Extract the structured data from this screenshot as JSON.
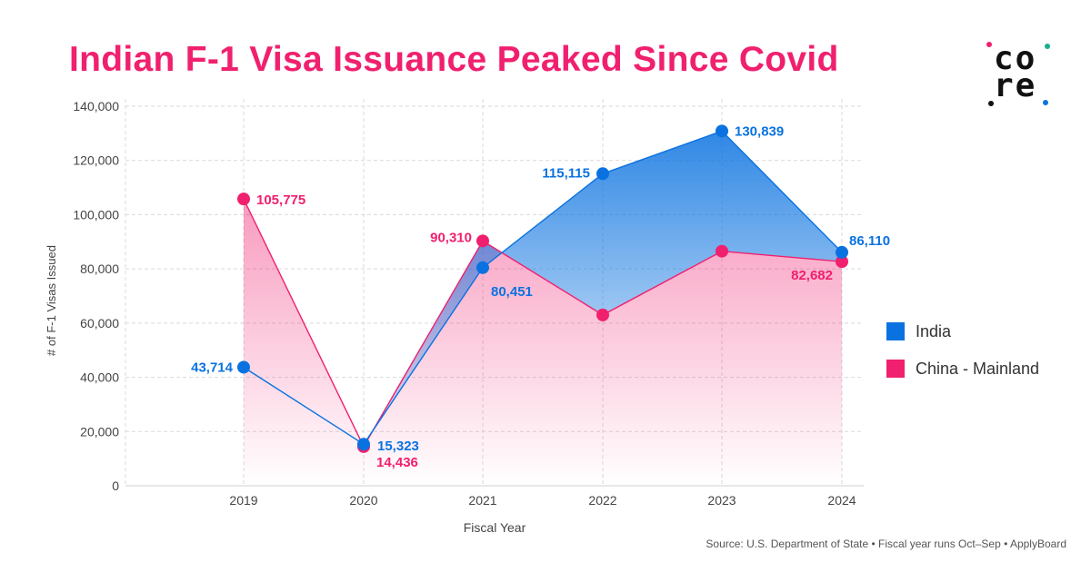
{
  "title": "Indian F-1 Visa Issuance Peaked Since Covid",
  "logo": {
    "line1": "co",
    "line2": "re"
  },
  "source": "Source: U.S. Department of State • Fiscal year runs Oct–Sep • ApplyBoard",
  "colors": {
    "india": "#0a72e0",
    "china": "#f0206f",
    "title": "#f0206f"
  },
  "chart_data": {
    "type": "area",
    "title": "Indian F-1 Visa Issuance Peaked Since Covid",
    "xlabel": "Fiscal Year",
    "ylabel": "# of F-1 Visas Issued",
    "x": [
      "2019",
      "2020",
      "2021",
      "2022",
      "2023",
      "2024"
    ],
    "ylim": [
      0,
      140000
    ],
    "yticks": [
      0,
      20000,
      40000,
      60000,
      80000,
      100000,
      120000,
      140000
    ],
    "ytick_labels": [
      "0",
      "20,000",
      "40,000",
      "60,000",
      "80,000",
      "100,000",
      "120,000",
      "140,000"
    ],
    "grid": true,
    "legend": "right",
    "series": [
      {
        "name": "India",
        "color": "#0a72e0",
        "values": [
          43714,
          15323,
          80451,
          115115,
          130839,
          86110
        ],
        "labels": [
          "43,714",
          "15,323",
          "80,451",
          "115,115",
          "130,839",
          "86,110"
        ]
      },
      {
        "name": "China - Mainland",
        "color": "#f0206f",
        "values": [
          105775,
          14436,
          90310,
          63000,
          86500,
          82682
        ],
        "labels": [
          "105,775",
          "14,436",
          "90,310",
          "",
          "",
          "82,682"
        ]
      }
    ]
  }
}
